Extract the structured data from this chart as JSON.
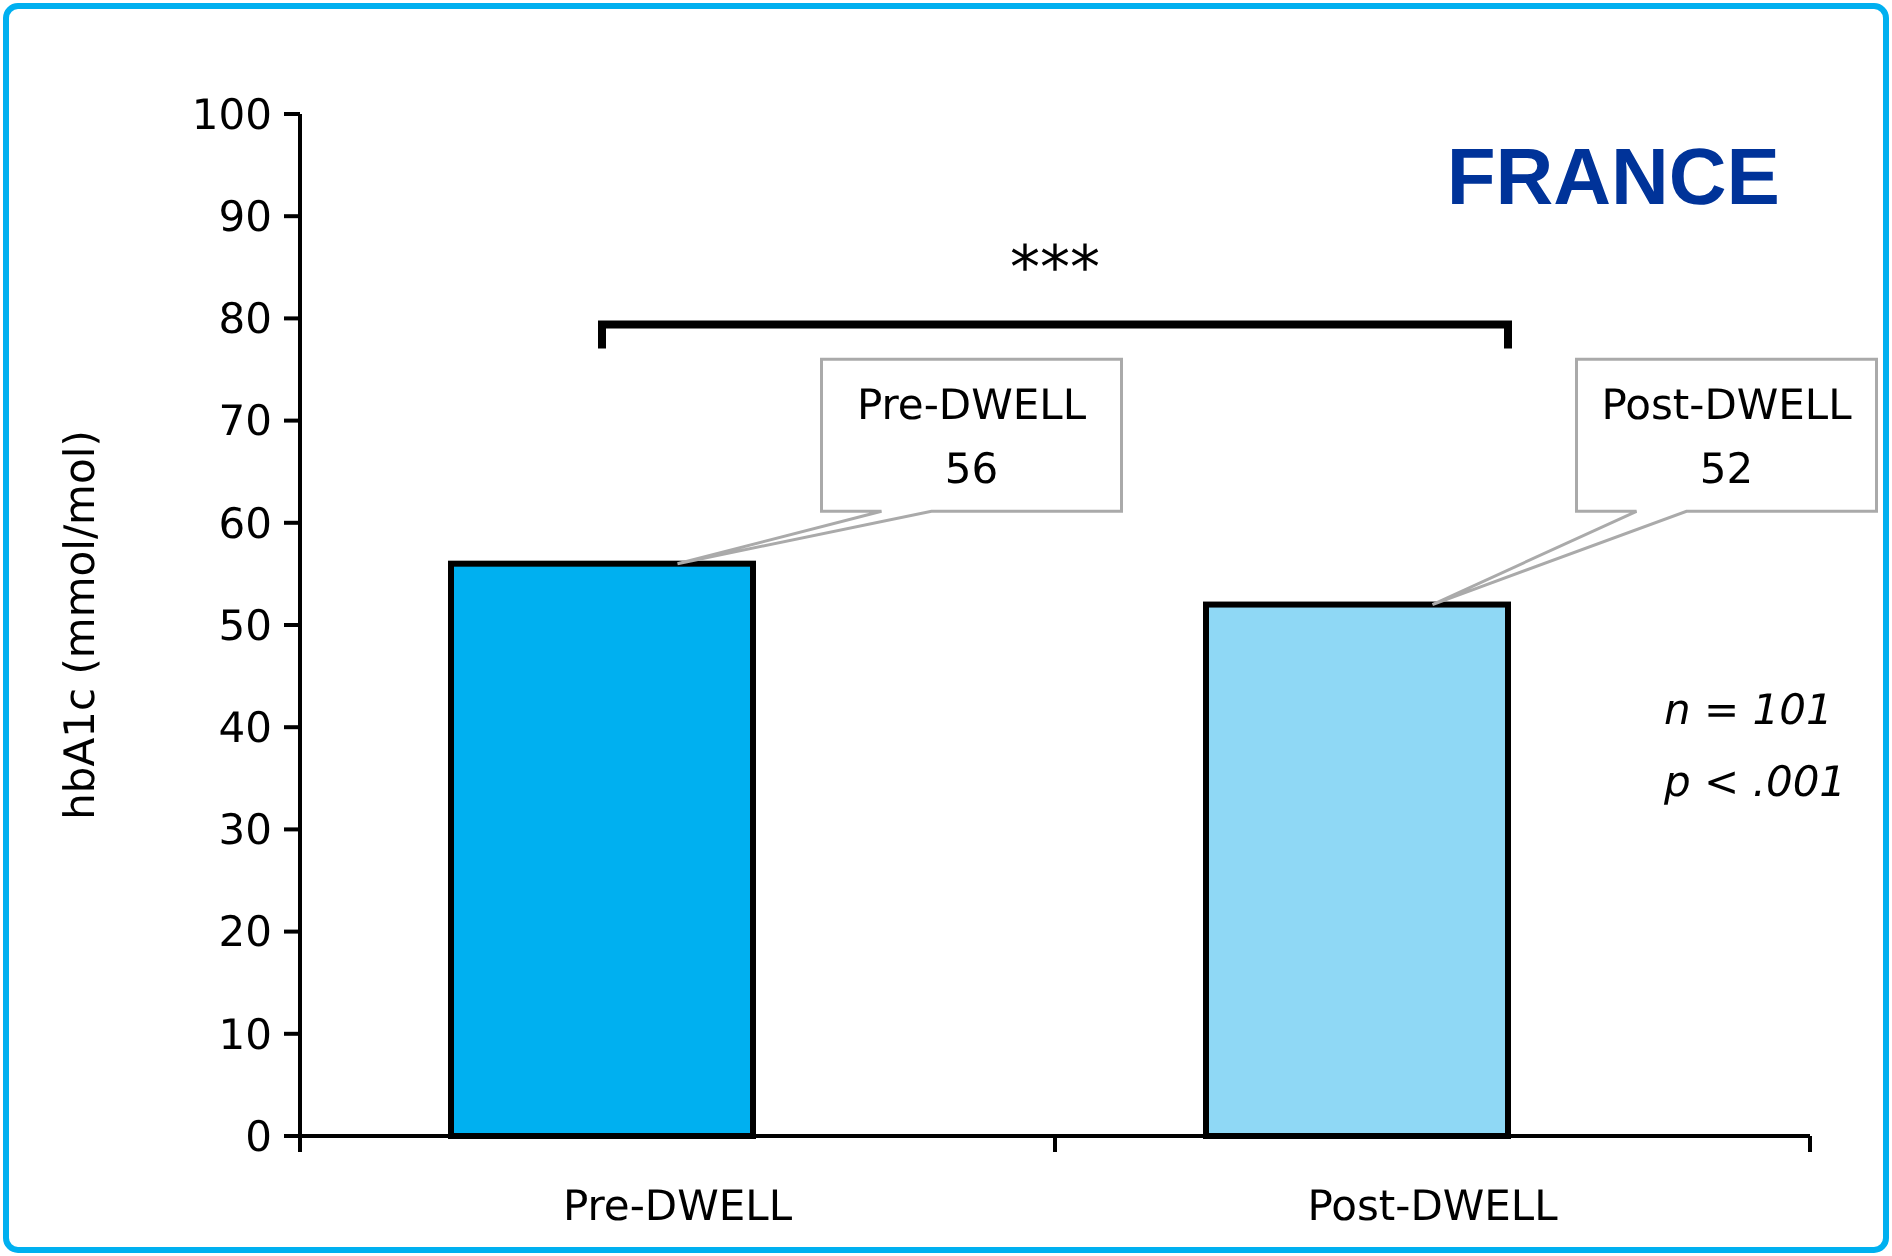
{
  "chart_data": {
    "type": "bar",
    "title": "FRANCE",
    "ylabel": "hbA1c (mmol/mol)",
    "categories": [
      "Pre-DWELL",
      "Post-DWELL"
    ],
    "values": [
      56,
      52
    ],
    "colors": [
      "#00b0f0",
      "#8fd8f5"
    ],
    "ylim": [
      0,
      100
    ],
    "yticks": [
      0,
      10,
      20,
      30,
      40,
      50,
      60,
      70,
      80,
      90,
      100
    ],
    "grid": false,
    "annotations": [
      "***",
      "n = 101",
      "p < .001",
      "Pre-DWELL\n56",
      "Post-DWELL\n52"
    ]
  }
}
